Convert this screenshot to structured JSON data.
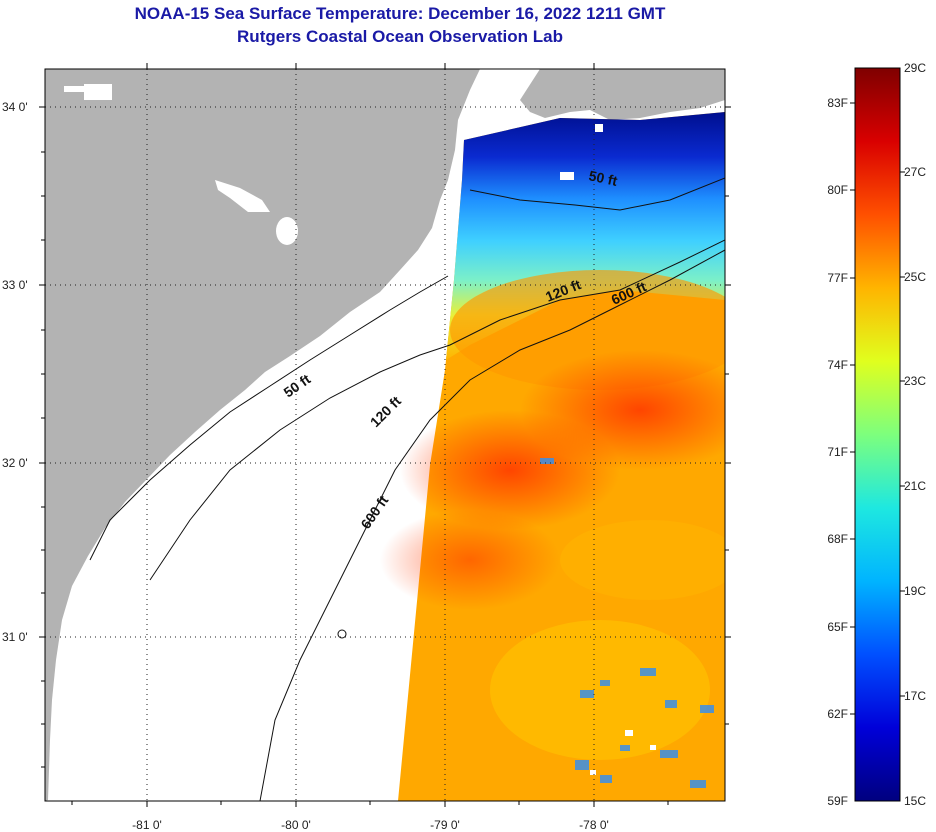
{
  "title": "NOAA-15 Sea Surface Temperature:  December 16, 2022 1211 GMT",
  "subtitle": "Rutgers Coastal Ocean Observation Lab",
  "map": {
    "latitude_labels": [
      "34 0'",
      "33 0'",
      "32 0'",
      "31 0'"
    ],
    "longitude_labels": [
      "-81 0'",
      "-80 0'",
      "-79 0'",
      "-78 0'"
    ],
    "contour_labels": [
      "50 ft",
      "120 ft",
      "600 ft",
      "50 ft",
      "120 ft",
      "600 ft"
    ],
    "colors": {
      "land": "#b3b3b3",
      "shelf_no_data": "#ffffff"
    }
  },
  "colorbar": {
    "fahrenheit_labels": [
      "83F",
      "80F",
      "77F",
      "74F",
      "71F",
      "68F",
      "65F",
      "62F",
      "59F"
    ],
    "celsius_labels": [
      "29C",
      "27C",
      "25C",
      "23C",
      "21C",
      "19C",
      "17C",
      "15C"
    ],
    "colors": [
      "#00007f",
      "#0000d9",
      "#0050ff",
      "#00b4ff",
      "#1ee8e0",
      "#7dff7d",
      "#e0ff1e",
      "#ffb400",
      "#ff5000",
      "#d90000",
      "#7f0000"
    ]
  }
}
